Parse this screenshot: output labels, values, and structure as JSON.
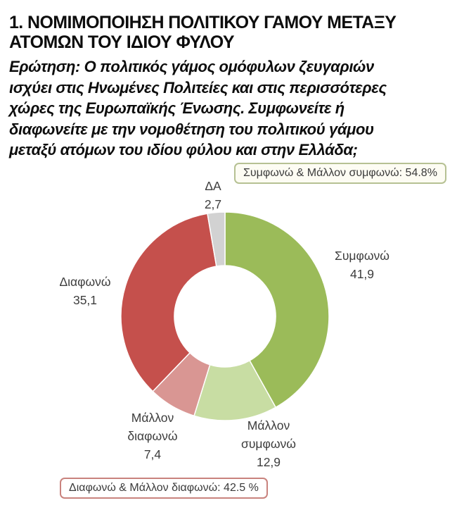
{
  "header": {
    "title_lines": [
      "1. ΝΟΜΙΜΟΠΟΙΗΣΗ ΠΟΛΙΤΙΚΟΥ ΓΑΜΟΥ ΜΕΤΑΞΥ",
      "ΑΤΟΜΩΝ ΤΟΥ ΙΔΙΟΥ ΦΥΛΟΥ"
    ],
    "question_lines": [
      "Ερώτηση: Ο πολιτικός γάμος ομόφυλων ζευγαριών",
      "ισχύει στις Ηνωμένες Πολιτείες και στις περισσότερες",
      "χώρες της Ευρωπαϊκής Ένωσης. Συμφωνείτε ή",
      "διαφωνείτε με την νομοθέτηση του πολιτικού γάμου",
      "μεταξύ ατόμων του ιδίου φύλου και στην Ελλάδα;"
    ]
  },
  "callouts": {
    "agree_total": "Συμφωνώ & Μάλλον συμφωνώ: 54.8%",
    "disagree_total": "Διαφωνώ & Μάλλον διαφωνώ: 42.5 %"
  },
  "chart_data": {
    "type": "pie",
    "donut": true,
    "start_angle_deg": 0,
    "direction": "clockwise",
    "legend": "none",
    "categories": [
      "Συμφωνώ",
      "Μάλλον συμφωνώ",
      "Μάλλον διαφωνώ",
      "Διαφωνώ",
      "ΔΑ"
    ],
    "values": [
      41.9,
      12.9,
      7.4,
      35.1,
      2.7
    ],
    "value_labels": [
      "41,9",
      "12,9",
      "7,4",
      "35,1",
      "2,7"
    ],
    "colors": [
      "#9bbb59",
      "#c8dda3",
      "#d99693",
      "#c5504c",
      "#d2d2d2"
    ],
    "aggregates": {
      "agree_plus_rather_agree_pct": 54.8,
      "disagree_plus_rather_disagree_pct": 42.5
    }
  }
}
